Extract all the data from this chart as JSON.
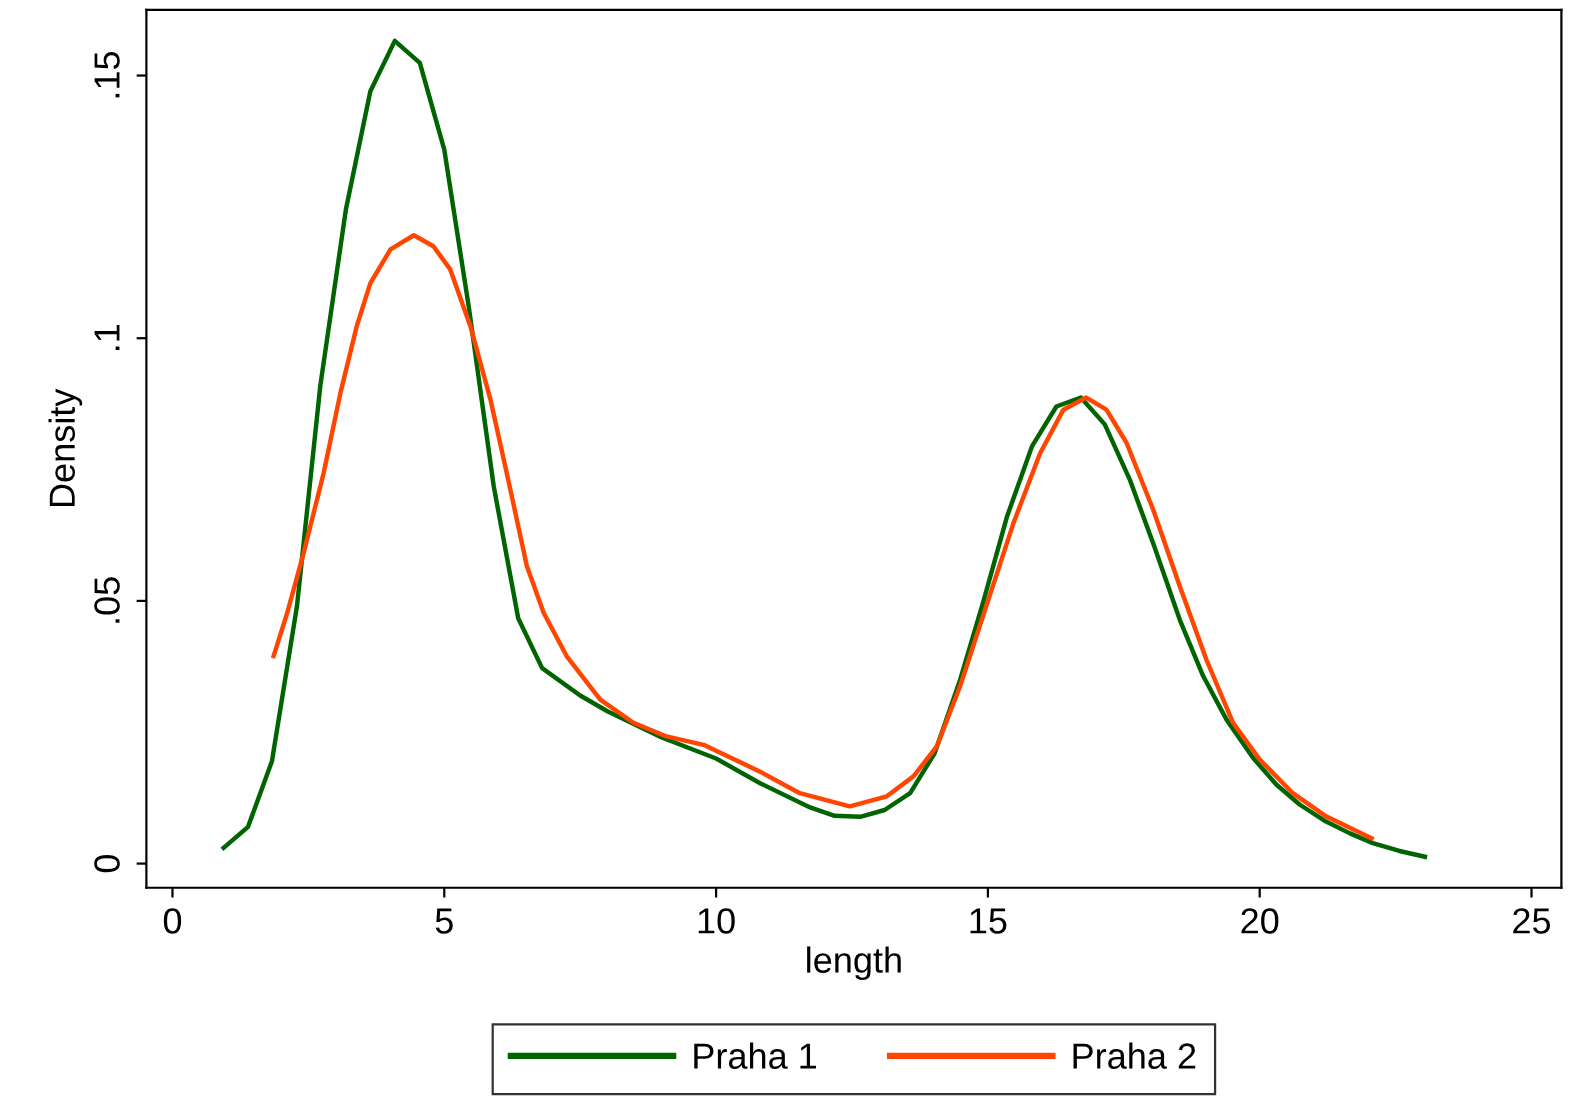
{
  "chart_data": {
    "type": "line",
    "xlabel": "length",
    "ylabel": "Density",
    "xlim": [
      -0.48,
      25.55
    ],
    "xticks": [
      0,
      5,
      10,
      15,
      20,
      25
    ],
    "ylim": [
      -0.0046,
      0.1625
    ],
    "yticks": [
      0,
      {
        "value": 0.05,
        "label": ".05"
      },
      {
        "value": 0.1,
        "label": ".1"
      },
      {
        "value": 0.15,
        "label": ".15"
      }
    ],
    "grid": false,
    "legend": "bottom",
    "marker": "none",
    "line_style": "solid",
    "series": [
      {
        "name": "Praha 1",
        "color": "#006400",
        "x": [
          0.94,
          1.39,
          1.83,
          2.29,
          2.72,
          3.19,
          3.64,
          4.09,
          4.55,
          5.0,
          5.45,
          5.91,
          6.36,
          6.8,
          7.5,
          8.0,
          9.0,
          10.0,
          10.81,
          11.73,
          12.18,
          12.65,
          13.1,
          13.57,
          14.02,
          14.49,
          14.92,
          15.35,
          15.81,
          16.26,
          16.71,
          17.15,
          17.61,
          18.06,
          18.53,
          18.96,
          19.39,
          19.88,
          20.31,
          20.74,
          21.22,
          21.65,
          22.08,
          22.57,
          23.04
        ],
        "values": [
          0.003,
          0.007,
          0.0195,
          0.049,
          0.091,
          0.1245,
          0.147,
          0.1566,
          0.1524,
          0.1359,
          0.106,
          0.0718,
          0.0467,
          0.0372,
          0.032,
          0.029,
          0.024,
          0.02,
          0.0153,
          0.0107,
          0.0091,
          0.0089,
          0.0102,
          0.0134,
          0.021,
          0.035,
          0.05,
          0.066,
          0.0794,
          0.087,
          0.0887,
          0.0836,
          0.0731,
          0.0604,
          0.0464,
          0.0357,
          0.0274,
          0.0201,
          0.015,
          0.0112,
          0.008,
          0.0058,
          0.0039,
          0.0024,
          0.0013
        ]
      },
      {
        "name": "Praha 2",
        "color": "#ff4500",
        "x": [
          1.86,
          2.11,
          2.41,
          2.78,
          3.09,
          3.39,
          3.64,
          4.01,
          4.44,
          4.8,
          5.11,
          5.48,
          5.85,
          6.15,
          6.52,
          6.83,
          7.25,
          7.87,
          8.48,
          9.09,
          9.77,
          10.81,
          11.54,
          12.46,
          13.14,
          13.63,
          14.06,
          14.49,
          14.97,
          15.47,
          15.96,
          16.39,
          16.81,
          17.18,
          17.55,
          18.04,
          18.53,
          19.02,
          19.51,
          20.0,
          20.61,
          21.22,
          22.06
        ],
        "values": [
          0.0395,
          0.0477,
          0.059,
          0.0743,
          0.0896,
          0.1023,
          0.1105,
          0.1169,
          0.1196,
          0.1175,
          0.1131,
          0.1023,
          0.0883,
          0.0743,
          0.0566,
          0.0477,
          0.0395,
          0.0312,
          0.0268,
          0.0242,
          0.0226,
          0.0175,
          0.0134,
          0.0109,
          0.0128,
          0.0166,
          0.0223,
          0.0338,
          0.049,
          0.0648,
          0.0781,
          0.0864,
          0.0887,
          0.0864,
          0.0801,
          0.0674,
          0.0528,
          0.0388,
          0.0268,
          0.0198,
          0.0134,
          0.009,
          0.0048
        ]
      }
    ]
  }
}
